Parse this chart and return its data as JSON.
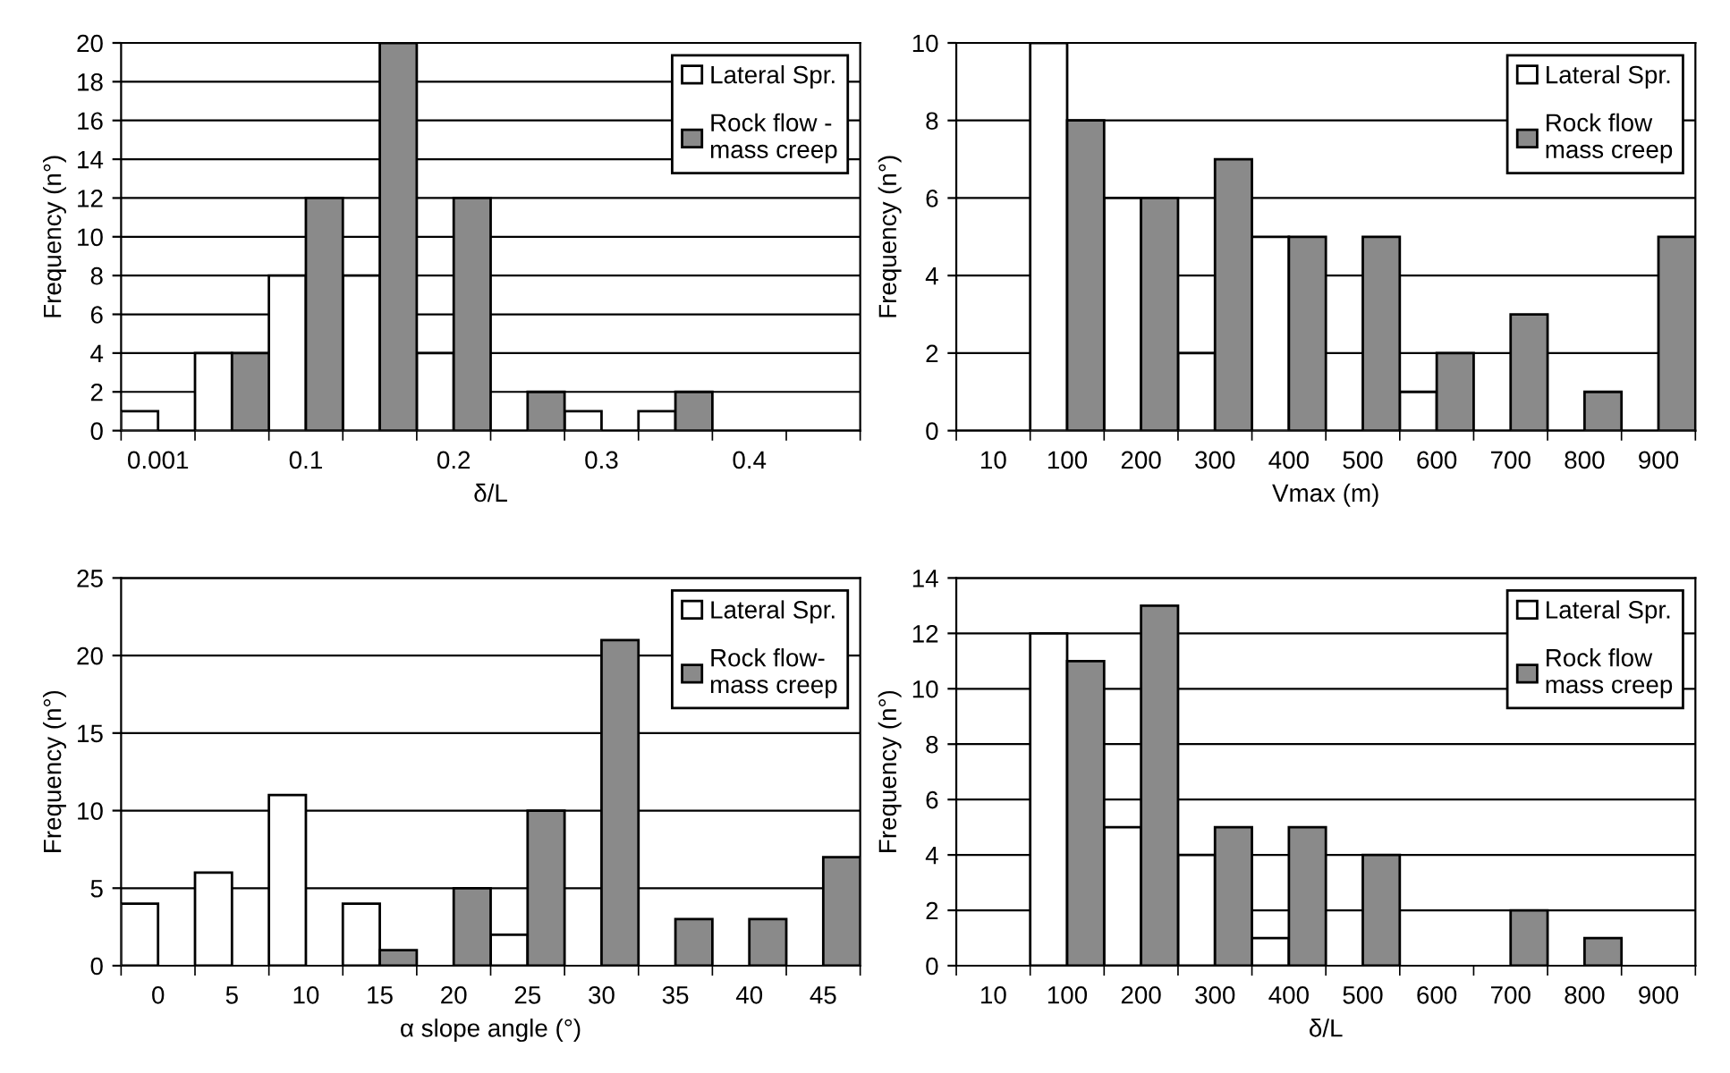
{
  "chart_data": [
    {
      "type": "bar",
      "xlabel": "δ/L",
      "ylabel": "Frequency (n°)",
      "categories": [
        "0.001",
        null,
        "0.1",
        null,
        "0.2",
        null,
        "0.3",
        null,
        "0.4",
        null
      ],
      "ylim": [
        0,
        20
      ],
      "yticks": [
        0,
        2,
        4,
        6,
        8,
        10,
        12,
        14,
        16,
        18,
        20
      ],
      "grid": "y",
      "legend": "top right",
      "series": [
        {
          "name": "Lateral Spr.",
          "color": "#ffffff",
          "values": [
            1,
            4,
            8,
            8,
            4,
            0,
            1,
            1,
            0,
            0
          ]
        },
        {
          "name": "Rock flow -\nmass creep",
          "color": "#8a8a8a",
          "values": [
            0,
            4,
            12,
            20,
            12,
            2,
            0,
            2,
            0,
            0
          ]
        }
      ]
    },
    {
      "type": "bar",
      "xlabel": "Vmax (m)",
      "ylabel": "Frequency (n°)",
      "categories": [
        "10",
        "100",
        "200",
        "300",
        "400",
        "500",
        "600",
        "700",
        "800",
        "900"
      ],
      "ylim": [
        0,
        10
      ],
      "yticks": [
        0,
        2,
        4,
        6,
        8,
        10
      ],
      "grid": "y",
      "legend": "top right",
      "series": [
        {
          "name": "Lateral Spr.",
          "color": "#ffffff",
          "values": [
            0,
            10,
            6,
            2,
            5,
            0,
            1,
            0,
            0,
            0
          ]
        },
        {
          "name": "Rock flow\nmass creep",
          "color": "#8a8a8a",
          "values": [
            0,
            8,
            6,
            7,
            5,
            5,
            2,
            3,
            1,
            5
          ]
        }
      ]
    },
    {
      "type": "bar",
      "xlabel": "α slope angle (°)",
      "ylabel": "Frequency (n°)",
      "categories": [
        "0",
        "5",
        "10",
        "15",
        "20",
        "25",
        "30",
        "35",
        "40",
        "45"
      ],
      "ylim": [
        0,
        25
      ],
      "yticks": [
        0,
        5,
        10,
        15,
        20,
        25
      ],
      "grid": "y",
      "legend": "top right",
      "series": [
        {
          "name": "Lateral Spr.",
          "color": "#ffffff",
          "values": [
            4,
            6,
            11,
            4,
            0,
            2,
            0,
            0,
            0,
            0
          ]
        },
        {
          "name": "Rock flow-\nmass creep",
          "color": "#8a8a8a",
          "values": [
            0,
            0,
            0,
            1,
            5,
            10,
            21,
            3,
            3,
            7
          ]
        }
      ]
    },
    {
      "type": "bar",
      "xlabel": "δ/L",
      "ylabel": "Frequency (n°)",
      "categories": [
        "10",
        "100",
        "200",
        "300",
        "400",
        "500",
        "600",
        "700",
        "800",
        "900"
      ],
      "ylim": [
        0,
        14
      ],
      "yticks": [
        0,
        2,
        4,
        6,
        8,
        10,
        12,
        14
      ],
      "grid": "y",
      "legend": "top right",
      "series": [
        {
          "name": "Lateral Spr.",
          "color": "#ffffff",
          "values": [
            0,
            12,
            5,
            4,
            1,
            0,
            0,
            0,
            0,
            0
          ]
        },
        {
          "name": "Rock flow\nmass creep",
          "color": "#8a8a8a",
          "values": [
            0,
            11,
            13,
            5,
            5,
            4,
            0,
            2,
            1,
            0
          ]
        }
      ]
    }
  ]
}
